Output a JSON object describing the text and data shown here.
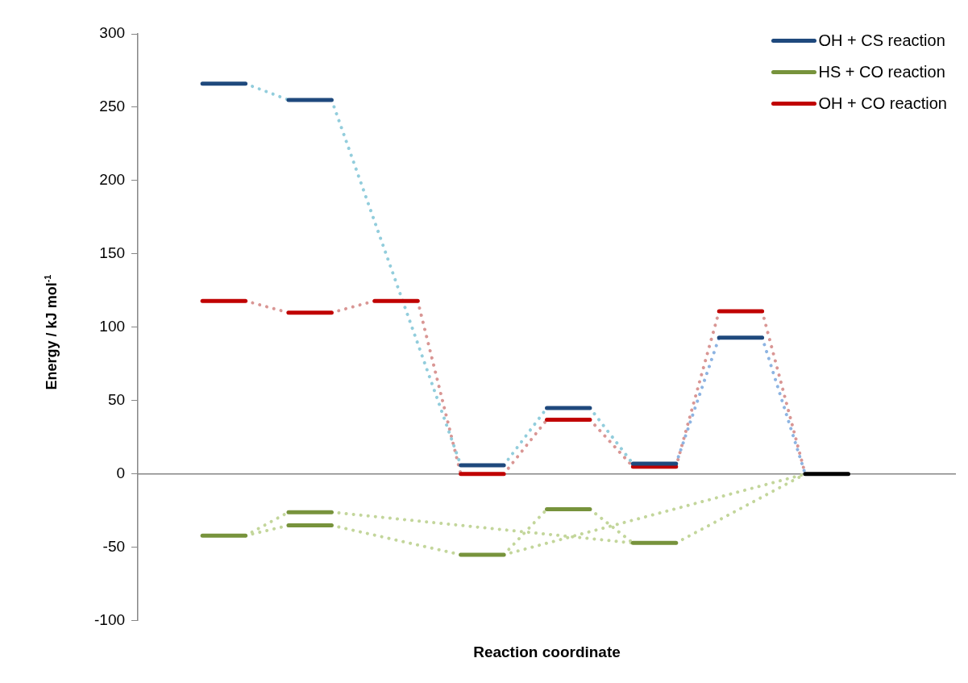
{
  "chart_data": {
    "type": "line",
    "xlabel": "Reaction coordinate",
    "ylabel": "Energy / kJ mol$^{-1}$",
    "categories": [
      null,
      null,
      null,
      null,
      null,
      null,
      null,
      null,
      null,
      null,
      null,
      null,
      null,
      null,
      null,
      null,
      null,
      null,
      null
    ],
    "series": [
      {
        "name": "OH + CS reaction",
        "color": "#1f497d",
        "line_style": "solid",
        "values": [
          null,
          266,
          266,
          null,
          null,
          null,
          null,
          null,
          null,
          null,
          null,
          null,
          null,
          null,
          null,
          null,
          null,
          null,
          null
        ]
      },
      {
        "color": "#1f497d",
        "line_style": "solid",
        "values": [
          null,
          null,
          null,
          255,
          255,
          null,
          null,
          null,
          null,
          null,
          null,
          null,
          null,
          null,
          null,
          null,
          null,
          null,
          null
        ]
      },
      {
        "color": "#1f497d",
        "line_style": "solid",
        "values": [
          null,
          null,
          null,
          null,
          null,
          null,
          null,
          6,
          6,
          null,
          null,
          null,
          null,
          null,
          null,
          null,
          null,
          null,
          null
        ]
      },
      {
        "color": "#1f497d",
        "line_style": "solid",
        "values": [
          null,
          null,
          null,
          null,
          null,
          null,
          null,
          null,
          null,
          45,
          45,
          null,
          null,
          null,
          null,
          null,
          null,
          null,
          null
        ]
      },
      {
        "color": "#1f497d",
        "line_style": "solid",
        "values": [
          null,
          null,
          null,
          null,
          null,
          null,
          null,
          null,
          null,
          null,
          null,
          7,
          7,
          null,
          null,
          null,
          null,
          null,
          null
        ]
      },
      {
        "color": "#1f497d",
        "line_style": "solid",
        "values": [
          null,
          null,
          null,
          null,
          null,
          null,
          null,
          null,
          null,
          null,
          null,
          null,
          null,
          93,
          93,
          null,
          null,
          null,
          null
        ]
      },
      {
        "name": "HS + CO reaction",
        "color": "#77933c",
        "line_style": "solid",
        "values": [
          null,
          -42,
          -42,
          null,
          null,
          null,
          null,
          null,
          null,
          null,
          null,
          null,
          null,
          null,
          null,
          null,
          null,
          null,
          null
        ]
      },
      {
        "color": "#77933c",
        "line_style": "solid",
        "values": [
          null,
          null,
          null,
          -26,
          -26,
          null,
          null,
          null,
          null,
          null,
          null,
          null,
          null,
          null,
          null,
          null,
          null,
          null,
          null
        ]
      },
      {
        "color": "#77933c",
        "line_style": "solid",
        "values": [
          null,
          null,
          null,
          -35,
          -35,
          null,
          null,
          null,
          null,
          null,
          null,
          null,
          null,
          null,
          null,
          null,
          null,
          null,
          null
        ]
      },
      {
        "color": "#77933c",
        "line_style": "solid",
        "values": [
          null,
          null,
          null,
          null,
          null,
          null,
          null,
          -55,
          -55,
          null,
          null,
          null,
          null,
          null,
          null,
          null,
          null,
          null,
          null
        ]
      },
      {
        "color": "#77933c",
        "line_style": "solid",
        "values": [
          null,
          null,
          null,
          null,
          null,
          null,
          null,
          null,
          null,
          -24,
          -24,
          null,
          null,
          null,
          null,
          null,
          null,
          null,
          null
        ]
      },
      {
        "color": "#77933c",
        "line_style": "solid",
        "values": [
          null,
          null,
          null,
          null,
          null,
          null,
          null,
          null,
          null,
          null,
          null,
          -47,
          -47,
          null,
          null,
          null,
          null,
          null,
          null
        ]
      },
      {
        "name": "OH + CO reaction",
        "color": "#c00000",
        "line_style": "solid",
        "values": [
          null,
          118,
          118,
          null,
          null,
          null,
          null,
          null,
          null,
          null,
          null,
          null,
          null,
          null,
          null,
          null,
          null,
          null,
          null
        ]
      },
      {
        "color": "#c00000",
        "line_style": "solid",
        "values": [
          null,
          null,
          null,
          110,
          110,
          null,
          null,
          null,
          null,
          null,
          null,
          null,
          null,
          null,
          null,
          null,
          null,
          null,
          null
        ]
      },
      {
        "color": "#c00000",
        "line_style": "solid",
        "values": [
          null,
          null,
          null,
          null,
          null,
          118,
          118,
          null,
          null,
          null,
          null,
          null,
          null,
          null,
          null,
          null,
          null,
          null,
          null
        ]
      },
      {
        "color": "#c00000",
        "line_style": "solid",
        "values": [
          null,
          null,
          null,
          null,
          null,
          null,
          null,
          0,
          0,
          null,
          null,
          null,
          null,
          null,
          null,
          null,
          null,
          null,
          null
        ]
      },
      {
        "color": "#c00000",
        "line_style": "solid",
        "values": [
          null,
          null,
          null,
          null,
          null,
          null,
          null,
          null,
          null,
          37,
          37,
          null,
          null,
          null,
          null,
          null,
          null,
          null,
          null
        ]
      },
      {
        "color": "#c00000",
        "line_style": "solid",
        "values": [
          null,
          null,
          null,
          null,
          null,
          null,
          null,
          null,
          null,
          null,
          null,
          5,
          5,
          null,
          null,
          null,
          null,
          null,
          null
        ]
      },
      {
        "color": "#c00000",
        "line_style": "solid",
        "values": [
          null,
          null,
          null,
          null,
          null,
          null,
          null,
          null,
          null,
          null,
          null,
          null,
          null,
          111,
          111,
          null,
          null,
          null,
          null
        ]
      },
      {
        "color": "#000000",
        "line_style": "solid",
        "values": [
          null,
          null,
          null,
          null,
          null,
          null,
          null,
          null,
          null,
          null,
          null,
          null,
          null,
          null,
          null,
          0,
          0,
          null,
          null
        ]
      },
      {
        "color": "#92cddc",
        "line_style": "dotted",
        "values": [
          null,
          null,
          266,
          255,
          null,
          null,
          null,
          null,
          null,
          null,
          null,
          null,
          null,
          null,
          null,
          null,
          null,
          null,
          null
        ]
      },
      {
        "color": "#92cddc",
        "line_style": "dotted",
        "values": [
          null,
          null,
          null,
          null,
          255,
          null,
          null,
          6,
          null,
          null,
          null,
          null,
          null,
          null,
          null,
          null,
          null,
          null,
          null
        ]
      },
      {
        "color": "#92cddc",
        "line_style": "dotted",
        "values": [
          null,
          null,
          null,
          null,
          null,
          null,
          null,
          null,
          6,
          45,
          null,
          null,
          null,
          null,
          null,
          null,
          null,
          null,
          null
        ]
      },
      {
        "color": "#92cddc",
        "line_style": "dotted",
        "values": [
          null,
          null,
          null,
          null,
          null,
          null,
          null,
          null,
          null,
          null,
          45,
          7,
          null,
          null,
          null,
          null,
          null,
          null,
          null
        ]
      },
      {
        "color": "#8db4e2",
        "line_style": "dotted",
        "values": [
          null,
          null,
          null,
          null,
          null,
          null,
          null,
          null,
          null,
          null,
          null,
          null,
          7,
          93,
          null,
          null,
          null,
          null,
          null
        ]
      },
      {
        "color": "#8db4e2",
        "line_style": "dotted",
        "values": [
          null,
          null,
          null,
          null,
          null,
          null,
          null,
          null,
          null,
          null,
          null,
          null,
          null,
          null,
          93,
          0,
          null,
          null,
          null
        ]
      },
      {
        "color": "#d99694",
        "line_style": "dotted",
        "values": [
          null,
          null,
          118,
          110,
          null,
          null,
          null,
          null,
          null,
          null,
          null,
          null,
          null,
          null,
          null,
          null,
          null,
          null,
          null
        ]
      },
      {
        "color": "#d99694",
        "line_style": "dotted",
        "values": [
          null,
          null,
          null,
          null,
          110,
          118,
          null,
          null,
          null,
          null,
          null,
          null,
          null,
          null,
          null,
          null,
          null,
          null,
          null
        ]
      },
      {
        "color": "#d99694",
        "line_style": "dotted",
        "values": [
          null,
          null,
          null,
          null,
          null,
          null,
          118,
          0,
          null,
          null,
          null,
          null,
          null,
          null,
          null,
          null,
          null,
          null,
          null
        ]
      },
      {
        "color": "#d99694",
        "line_style": "dotted",
        "values": [
          null,
          null,
          null,
          null,
          null,
          null,
          null,
          null,
          0,
          37,
          null,
          null,
          null,
          null,
          null,
          null,
          null,
          null,
          null
        ]
      },
      {
        "color": "#d99694",
        "line_style": "dotted",
        "values": [
          null,
          null,
          null,
          null,
          null,
          null,
          null,
          null,
          null,
          null,
          37,
          5,
          null,
          null,
          null,
          null,
          null,
          null,
          null
        ]
      },
      {
        "color": "#d99694",
        "line_style": "dotted",
        "values": [
          null,
          null,
          null,
          null,
          null,
          null,
          null,
          null,
          null,
          null,
          null,
          null,
          5,
          111,
          null,
          null,
          null,
          null,
          null
        ]
      },
      {
        "color": "#d99694",
        "line_style": "dotted",
        "values": [
          null,
          null,
          null,
          null,
          null,
          null,
          null,
          null,
          null,
          null,
          null,
          null,
          null,
          null,
          111,
          0,
          null,
          null,
          null
        ]
      },
      {
        "color": "#c3d69b",
        "line_style": "dotted",
        "values": [
          null,
          null,
          -42,
          -26,
          null,
          null,
          null,
          null,
          null,
          null,
          null,
          null,
          null,
          null,
          null,
          null,
          null,
          null,
          null
        ]
      },
      {
        "color": "#c3d69b",
        "line_style": "dotted",
        "values": [
          null,
          null,
          -42,
          -35,
          null,
          null,
          null,
          null,
          null,
          null,
          null,
          null,
          null,
          null,
          null,
          null,
          null,
          null,
          null
        ]
      },
      {
        "color": "#c3d69b",
        "line_style": "dotted",
        "values": [
          null,
          null,
          null,
          null,
          -26,
          null,
          null,
          null,
          null,
          null,
          null,
          -47,
          null,
          null,
          null,
          null,
          null,
          null,
          null
        ]
      },
      {
        "color": "#c3d69b",
        "line_style": "dotted",
        "values": [
          null,
          null,
          null,
          null,
          -35,
          null,
          null,
          -55,
          null,
          null,
          null,
          null,
          null,
          null,
          null,
          null,
          null,
          null,
          null
        ]
      },
      {
        "color": "#c3d69b",
        "line_style": "dotted",
        "values": [
          null,
          null,
          null,
          null,
          null,
          null,
          null,
          null,
          -55,
          -24,
          null,
          null,
          null,
          null,
          null,
          null,
          null,
          null,
          null
        ]
      },
      {
        "color": "#c3d69b",
        "line_style": "dotted",
        "values": [
          null,
          null,
          null,
          null,
          null,
          null,
          null,
          null,
          null,
          null,
          -24,
          -47,
          null,
          null,
          null,
          null,
          null,
          null,
          null
        ]
      },
      {
        "color": "#c3d69b",
        "line_style": "dotted",
        "values": [
          null,
          null,
          null,
          null,
          null,
          null,
          null,
          null,
          -55,
          null,
          null,
          null,
          null,
          null,
          null,
          0,
          null,
          null,
          null
        ]
      },
      {
        "color": "#c3d69b",
        "line_style": "dotted",
        "values": [
          null,
          null,
          null,
          null,
          null,
          null,
          null,
          null,
          null,
          null,
          null,
          null,
          -47,
          null,
          null,
          0,
          null,
          null,
          null
        ]
      }
    ],
    "ylim": [
      -100,
      300
    ],
    "yticks": [
      -100,
      -50,
      0,
      50,
      100,
      150,
      200,
      250,
      300
    ],
    "ref_lines": [
      {
        "axis": "y",
        "value": 0,
        "color": "#868686"
      }
    ],
    "grid": false,
    "legend": "top right",
    "marker": "none"
  }
}
